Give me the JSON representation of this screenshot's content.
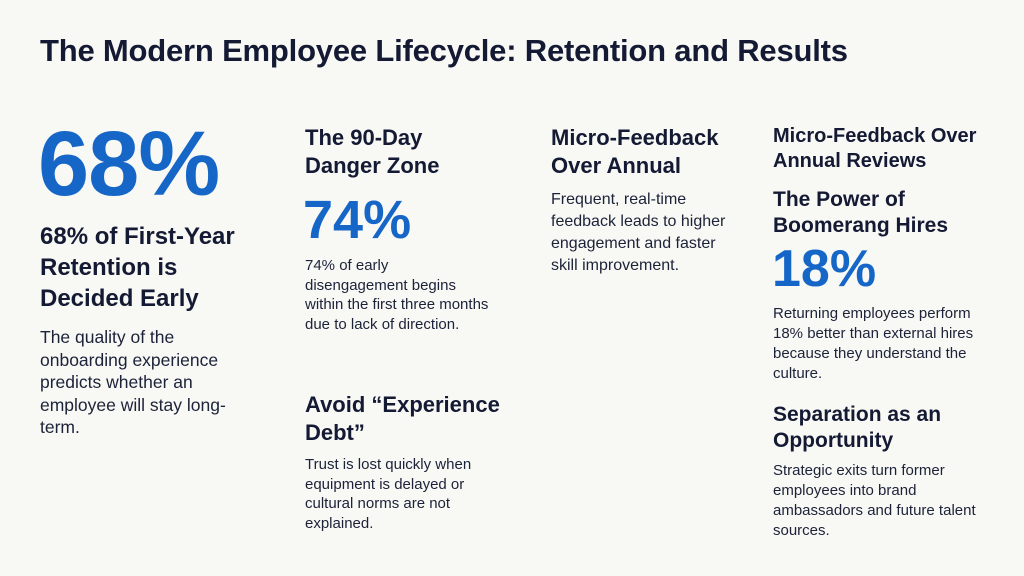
{
  "title": "The Modern Employee Lifecycle: Retention and Results",
  "colors": {
    "accent": "#1566c7",
    "text": "#141a33",
    "background": "#f8f8f5"
  },
  "col1": {
    "stat": "68%",
    "heading": "68% of First-Year Retention is Decided Early",
    "body": "The quality of the onboarding experience predicts whether an employee will stay long-term."
  },
  "col2": {
    "heading": "The 90-Day Danger Zone",
    "stat": "74%",
    "body": "74% of early disengagement begins within the first three months due to lack of direction.",
    "heading2": "Avoid “Experience Debt”",
    "body2": "Trust is lost quickly when equipment is delayed or cultural norms are not explained."
  },
  "col3": {
    "heading": "Micro-Feedback Over Annual",
    "body": "Frequent, real-time feedback leads to higher engagement and faster skill improvement."
  },
  "col4": {
    "heading": "Micro-Feedback Over Annual Reviews",
    "heading2": "The Power of Boomerang Hires",
    "stat": "18%",
    "body": "Returning employees perform 18% better than external hires because they understand the culture.",
    "heading3": "Separation as an Opportunity",
    "body3": "Strategic exits turn former employees into brand ambassadors and future talent sources."
  }
}
